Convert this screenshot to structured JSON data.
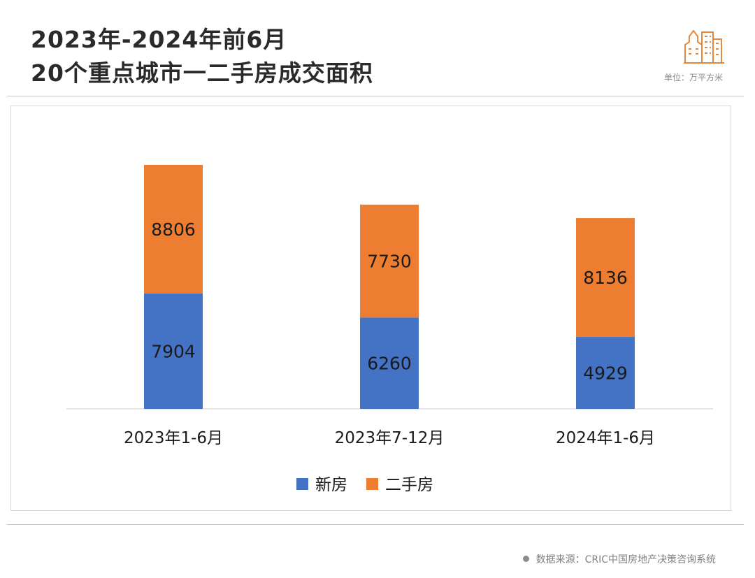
{
  "header": {
    "title_line1": "2023年-2024年前6月",
    "title_line2": "20个重点城市一二手房成交面积",
    "unit": "单位：万平方米"
  },
  "logo": {
    "icon": "building-icon",
    "color": "#E8873A"
  },
  "footer": {
    "source": "数据来源：CRIC中国房地产决策咨询系统"
  },
  "colors": {
    "new": "#4472C4",
    "second": "#ED7D31"
  },
  "chart_data": {
    "type": "bar",
    "stacked": true,
    "title": "20个重点城市一二手房成交面积",
    "categories": [
      "2023年1-6月",
      "2023年7-12月",
      "2024年1-6月"
    ],
    "series": [
      {
        "name": "新房",
        "values": [
          7904,
          6260,
          4929
        ],
        "color": "#4472C4"
      },
      {
        "name": "二手房",
        "values": [
          8806,
          7730,
          8136
        ],
        "color": "#ED7D31"
      }
    ],
    "ylim": [
      0,
      18000
    ],
    "xlabel": "",
    "ylabel": "",
    "grid": false,
    "legend": "bottom-center"
  }
}
